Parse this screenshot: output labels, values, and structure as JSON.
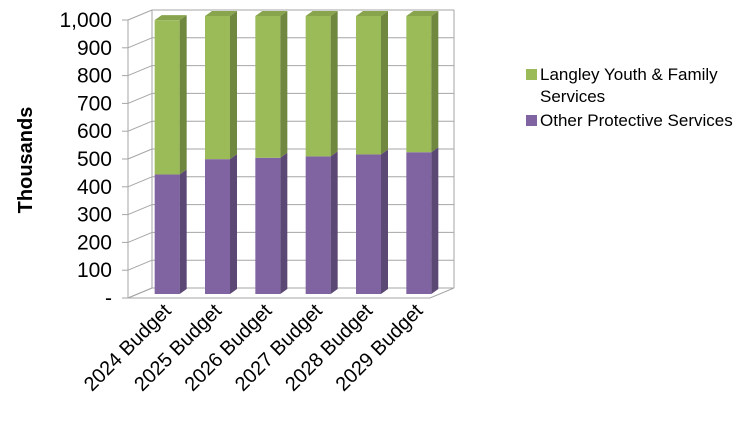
{
  "chart_data": {
    "type": "bar",
    "stacked": true,
    "three_d": true,
    "categories": [
      "2024 Budget",
      "2025 Budget",
      "2026 Budget",
      "2027 Budget",
      "2028 Budget",
      "2029 Budget"
    ],
    "series": [
      {
        "name": "Other Protective Services",
        "color": "#8064A2",
        "values": [
          430,
          485,
          490,
          495,
          502,
          510
        ]
      },
      {
        "name": "Langley Youth & Family Services",
        "color": "#9BBB59",
        "values": [
          555,
          515,
          510,
          505,
          498,
          490
        ]
      }
    ],
    "ylabel": "Thousands",
    "ylim": [
      0,
      1000
    ],
    "ytick_values": [
      0,
      100,
      200,
      300,
      400,
      500,
      600,
      700,
      800,
      900,
      1000
    ],
    "ytick_labels": [
      "-",
      "100",
      "200",
      "300",
      "400",
      "500",
      "600",
      "700",
      "800",
      "900",
      "1,000"
    ],
    "grid": true,
    "legend_position": "right",
    "legend_order": [
      "Langley Youth & Family Services",
      "Other Protective Services"
    ]
  }
}
